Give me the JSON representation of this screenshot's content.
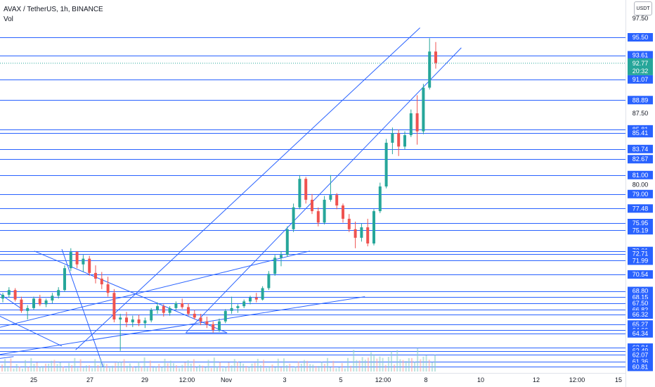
{
  "header": {
    "symbol_title": "AVAX / TetherUS, 1h, BINANCE",
    "volume_label": "Vol",
    "currency": "USDT"
  },
  "colors": {
    "up": "#26a69a",
    "down": "#ef5350",
    "line": "#2962ff",
    "label_bg": "#2962ff",
    "current_price_bg": "#26a69a",
    "axis_text": "#131722"
  },
  "chart_data": {
    "type": "candlestick",
    "title": "AVAX / TetherUS, 1h, BINANCE",
    "xlabel": "",
    "ylabel": "",
    "ylim": [
      60.81,
      99.0
    ],
    "grid": false,
    "x_ticks": [
      "25",
      "27",
      "29",
      "12:00",
      "Nov",
      "3",
      "5",
      "12:00",
      "8",
      "10",
      "12",
      "12:00",
      "15"
    ],
    "plain_y_ticks": [
      "97.50",
      "87.50",
      "80.00"
    ],
    "horizontal_levels": [
      "95.50",
      "93.61",
      "91.07",
      "88.89",
      "85.81",
      "85.41",
      "83.74",
      "82.67",
      "81.00",
      "79.00",
      "77.48",
      "75.95",
      "75.19",
      "73.01",
      "72.71",
      "71.99",
      "70.54",
      "68.80",
      "68.15",
      "67.50",
      "66.82",
      "66.32",
      "65.27",
      "64.66",
      "64.34",
      "62.84",
      "62.49",
      "62.07",
      "61.36",
      "60.81"
    ],
    "current_price": "92.77",
    "countdown": "20:32",
    "trendlines": [
      {
        "from": [
          "Oct 26 12:00",
          73.2
        ],
        "to": [
          "Oct 28 00:00",
          60.8
        ]
      },
      {
        "from": [
          "Oct 26 12:00",
          63.0
        ],
        "to": [
          "Oct 24 00:00",
          66.5
        ]
      },
      {
        "from": [
          "Oct 24 00:00",
          69.0
        ],
        "to": [
          "Oct 25 00:00",
          67.0
        ]
      },
      {
        "from": [
          "Oct 24 00:00",
          64.8
        ],
        "to": [
          "Nov 04 12:00",
          73.0
        ]
      },
      {
        "from": [
          "Oct 24 00:00",
          62.0
        ],
        "to": [
          "Nov 06 12:00",
          68.2
        ]
      },
      {
        "from": [
          "Oct 27 00:00",
          62.6
        ],
        "to": [
          "Nov 08 12:00",
          96.5
        ]
      },
      {
        "from": [
          "Oct 31 00:00",
          64.4
        ],
        "to": [
          "Nov 10 00:00",
          94.4
        ]
      },
      {
        "from": [
          "Oct 31 00:00",
          64.4
        ],
        "to": [
          "Nov 01 12:00",
          64.4
        ]
      },
      {
        "from": [
          "Oct 25 12:00",
          73.0
        ],
        "to": [
          "Nov 01 12:00",
          64.4
        ]
      },
      {
        "from": [
          "Oct 24 00:00",
          61.6
        ],
        "to": [
          "Oct 24 18:00",
          61.9
        ]
      }
    ],
    "series": [
      {
        "values_ohlc": [
          [
            68,
            68.6,
            67.6,
            68.4
          ],
          [
            68.4,
            69.2,
            68.1,
            68.9
          ],
          [
            68.9,
            69.1,
            67.7,
            67.9
          ],
          [
            67.9,
            68.2,
            66.5,
            66.7
          ],
          [
            66.7,
            67.3,
            65.8,
            67.0
          ],
          [
            67.0,
            68.2,
            66.8,
            68.0
          ],
          [
            68.0,
            68.4,
            67.2,
            67.4
          ],
          [
            67.4,
            68.0,
            67.1,
            67.8
          ],
          [
            67.8,
            68.6,
            67.5,
            68.3
          ],
          [
            68.3,
            69.2,
            68.0,
            68.9
          ],
          [
            68.9,
            71.5,
            68.7,
            71.2
          ],
          [
            71.2,
            73.3,
            70.9,
            72.9
          ],
          [
            72.9,
            73.0,
            71.2,
            71.6
          ],
          [
            71.6,
            72.6,
            70.8,
            72.2
          ],
          [
            72.2,
            72.5,
            70.4,
            70.7
          ],
          [
            70.7,
            71.5,
            69.6,
            70.1
          ],
          [
            70.1,
            70.8,
            69.0,
            69.5
          ],
          [
            69.5,
            70.3,
            68.2,
            68.6
          ],
          [
            68.6,
            69.0,
            65.5,
            65.8
          ],
          [
            65.8,
            66.4,
            62.5,
            66.0
          ],
          [
            66.0,
            66.6,
            65.0,
            65.5
          ],
          [
            65.5,
            66.2,
            65.0,
            65.8
          ],
          [
            65.8,
            66.3,
            65.1,
            65.4
          ],
          [
            65.4,
            66.0,
            64.9,
            65.7
          ],
          [
            65.7,
            67.0,
            65.5,
            66.8
          ],
          [
            66.8,
            67.6,
            66.4,
            67.2
          ],
          [
            67.2,
            67.4,
            66.1,
            66.5
          ],
          [
            66.5,
            67.2,
            66.2,
            67.0
          ],
          [
            67.0,
            67.7,
            66.8,
            67.5
          ],
          [
            67.5,
            68.0,
            66.9,
            67.1
          ],
          [
            67.1,
            67.5,
            66.2,
            66.4
          ],
          [
            66.4,
            66.8,
            65.8,
            66.0
          ],
          [
            66.0,
            66.4,
            65.2,
            65.6
          ],
          [
            65.6,
            66.1,
            64.9,
            65.3
          ],
          [
            65.3,
            65.6,
            64.4,
            64.7
          ],
          [
            64.7,
            65.9,
            64.5,
            65.6
          ],
          [
            65.6,
            66.9,
            65.4,
            66.7
          ],
          [
            66.7,
            68.2,
            66.4,
            67.0
          ],
          [
            67.0,
            67.4,
            66.5,
            67.2
          ],
          [
            67.2,
            67.9,
            67.0,
            67.7
          ],
          [
            67.7,
            68.3,
            67.4,
            68.1
          ],
          [
            68.1,
            68.6,
            67.6,
            67.9
          ],
          [
            67.9,
            69.3,
            67.8,
            69.1
          ],
          [
            69.1,
            70.9,
            68.9,
            70.6
          ],
          [
            70.6,
            72.6,
            70.4,
            72.3
          ],
          [
            72.3,
            73.0,
            71.4,
            72.6
          ],
          [
            72.6,
            75.6,
            72.4,
            75.3
          ],
          [
            75.3,
            78.0,
            75.0,
            77.6
          ],
          [
            77.6,
            81.0,
            77.4,
            80.6
          ],
          [
            80.6,
            80.8,
            78.0,
            78.4
          ],
          [
            78.4,
            79.0,
            76.9,
            77.2
          ],
          [
            77.2,
            77.6,
            75.6,
            76.0
          ],
          [
            76.0,
            78.8,
            75.8,
            78.4
          ],
          [
            78.4,
            81.0,
            78.2,
            78.9
          ],
          [
            78.9,
            79.1,
            77.4,
            77.8
          ],
          [
            77.8,
            78.0,
            76.0,
            76.4
          ],
          [
            76.4,
            76.9,
            75.0,
            75.3
          ],
          [
            75.3,
            76.1,
            73.3,
            74.4
          ],
          [
            74.4,
            75.9,
            74.0,
            75.5
          ],
          [
            75.5,
            76.4,
            73.5,
            73.8
          ],
          [
            73.8,
            77.4,
            73.6,
            77.2
          ],
          [
            77.2,
            80.2,
            77.0,
            79.8
          ],
          [
            79.8,
            84.8,
            79.6,
            84.4
          ],
          [
            84.4,
            86.0,
            83.2,
            85.4
          ],
          [
            85.4,
            85.8,
            83.0,
            84.0
          ],
          [
            84.0,
            85.6,
            83.7,
            85.2
          ],
          [
            85.2,
            87.9,
            85.0,
            87.5
          ],
          [
            87.5,
            89.4,
            84.2,
            85.6
          ],
          [
            85.6,
            90.6,
            85.3,
            90.2
          ],
          [
            90.2,
            95.4,
            90.0,
            94.0
          ],
          [
            94.0,
            95.0,
            92.2,
            92.8
          ]
        ]
      }
    ],
    "volume_note": "volume bars shown at bottom"
  }
}
